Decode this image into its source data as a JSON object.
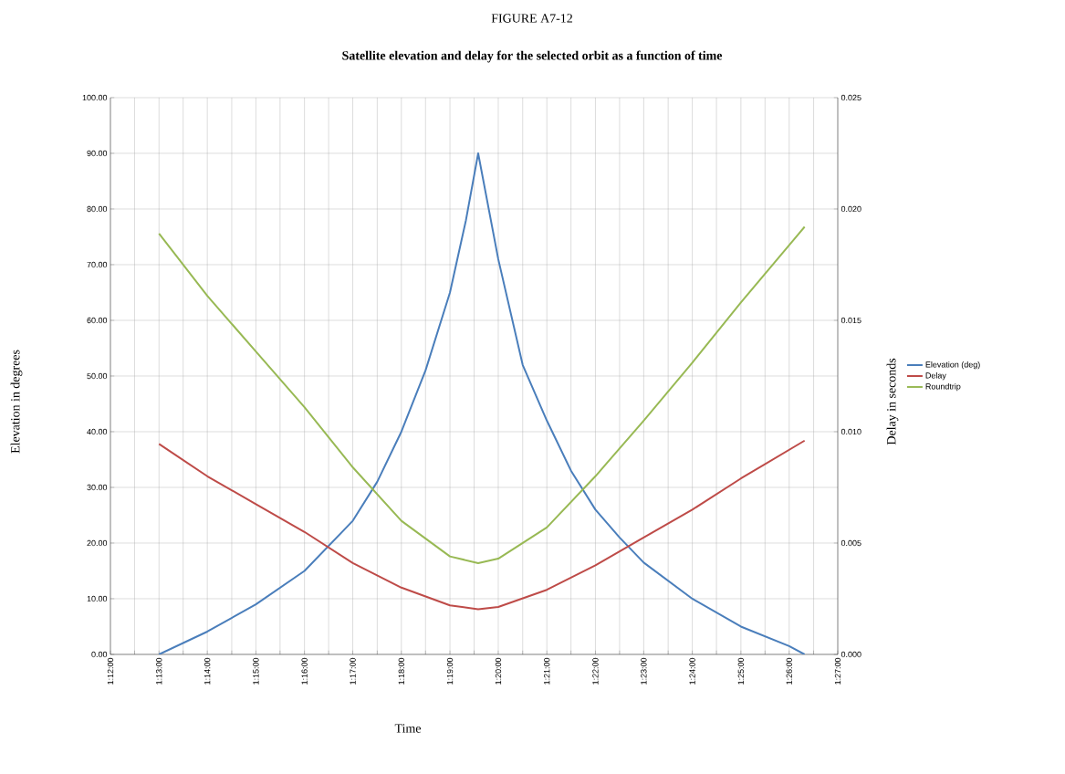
{
  "chart_data": {
    "type": "line",
    "title": "FIGURE A7-12",
    "subtitle": "Satellite elevation and delay for the selected orbit as a function of time",
    "xlabel": "Time",
    "ylabel": "Elevation in degrees",
    "y2label": "Delay in seconds",
    "series": [
      {
        "name": "Elevation (deg)",
        "color": "#4a7ebb",
        "x": [
          1.2167,
          1.2333,
          1.25,
          1.2667,
          1.2833,
          1.2917,
          1.3,
          1.3083,
          1.3167,
          1.3222,
          1.3264,
          1.3333,
          1.3417,
          1.35,
          1.3583,
          1.3667,
          1.375,
          1.3833,
          1.4,
          1.4167,
          1.4333,
          1.4386
        ],
        "values": [
          0,
          4.1,
          9,
          15,
          24,
          31,
          40,
          51,
          65,
          78,
          90,
          71,
          52,
          42,
          33,
          26,
          21,
          16.5,
          10,
          5,
          1.5,
          0
        ]
      },
      {
        "name": "Delay",
        "color": "#be4b48",
        "axis": "y2",
        "x": [
          1.2167,
          1.2333,
          1.25,
          1.2667,
          1.2833,
          1.3,
          1.3167,
          1.3264,
          1.3333,
          1.35,
          1.3667,
          1.3833,
          1.4,
          1.4167,
          1.4386
        ],
        "values": [
          0.00945,
          0.008,
          0.00675,
          0.0055,
          0.0041,
          0.003,
          0.0022,
          0.00203,
          0.00213,
          0.0029,
          0.004,
          0.00525,
          0.0065,
          0.0079,
          0.0096
        ]
      },
      {
        "name": "Roundtrip",
        "color": "#98b954",
        "axis": "y2",
        "x": [
          1.2167,
          1.2333,
          1.25,
          1.2667,
          1.2833,
          1.3,
          1.3167,
          1.3264,
          1.3333,
          1.35,
          1.3667,
          1.3833,
          1.4,
          1.4167,
          1.4386
        ],
        "values": [
          0.0189,
          0.0161,
          0.0136,
          0.0111,
          0.0084,
          0.006,
          0.0044,
          0.0041,
          0.0043,
          0.0057,
          0.008,
          0.0105,
          0.0131,
          0.0158,
          0.0192
        ]
      }
    ],
    "xlim": [
      1.2,
      1.45
    ],
    "xticks": [
      {
        "value": 1.2,
        "label": "1:12:00"
      },
      {
        "value": 1.2083,
        "label": null
      },
      {
        "value": 1.2167,
        "label": "1:13:00"
      },
      {
        "value": 1.225,
        "label": null
      },
      {
        "value": 1.2333,
        "label": "1:14:00"
      },
      {
        "value": 1.2417,
        "label": null
      },
      {
        "value": 1.25,
        "label": "1:15:00"
      },
      {
        "value": 1.2583,
        "label": null
      },
      {
        "value": 1.2667,
        "label": "1:16:00"
      },
      {
        "value": 1.275,
        "label": null
      },
      {
        "value": 1.2833,
        "label": "1:17:00"
      },
      {
        "value": 1.2917,
        "label": null
      },
      {
        "value": 1.3,
        "label": "1:18:00"
      },
      {
        "value": 1.3083,
        "label": null
      },
      {
        "value": 1.3167,
        "label": "1:19:00"
      },
      {
        "value": 1.325,
        "label": null
      },
      {
        "value": 1.3333,
        "label": "1:20:00"
      },
      {
        "value": 1.3417,
        "label": null
      },
      {
        "value": 1.35,
        "label": "1:21:00"
      },
      {
        "value": 1.3583,
        "label": null
      },
      {
        "value": 1.3667,
        "label": "1:22:00"
      },
      {
        "value": 1.375,
        "label": null
      },
      {
        "value": 1.3833,
        "label": "1:23:00"
      },
      {
        "value": 1.3917,
        "label": null
      },
      {
        "value": 1.4,
        "label": "1:24:00"
      },
      {
        "value": 1.4083,
        "label": null
      },
      {
        "value": 1.4167,
        "label": "1:25:00"
      },
      {
        "value": 1.425,
        "label": null
      },
      {
        "value": 1.4333,
        "label": "1:26:00"
      },
      {
        "value": 1.4417,
        "label": null
      },
      {
        "value": 1.45,
        "label": "1:27:00"
      }
    ],
    "ylim": [
      0,
      100
    ],
    "yticks": [
      {
        "value": 0,
        "label": "0.00"
      },
      {
        "value": 10,
        "label": "10.00"
      },
      {
        "value": 20,
        "label": "20.00"
      },
      {
        "value": 30,
        "label": "30.00"
      },
      {
        "value": 40,
        "label": "40.00"
      },
      {
        "value": 50,
        "label": "50.00"
      },
      {
        "value": 60,
        "label": "60.00"
      },
      {
        "value": 70,
        "label": "70.00"
      },
      {
        "value": 80,
        "label": "80.00"
      },
      {
        "value": 90,
        "label": "90.00"
      },
      {
        "value": 100,
        "label": "100.00"
      }
    ],
    "y2lim": [
      0,
      0.025
    ],
    "y2ticks": [
      {
        "value": 0,
        "label": "0.000"
      },
      {
        "value": 0.005,
        "label": "0.005"
      },
      {
        "value": 0.01,
        "label": "0.010"
      },
      {
        "value": 0.015,
        "label": "0.015"
      },
      {
        "value": 0.02,
        "label": "0.020"
      },
      {
        "value": 0.025,
        "label": "0.025"
      }
    ],
    "grid": true,
    "legend": "right",
    "marker": "none",
    "line_style": "solid"
  }
}
